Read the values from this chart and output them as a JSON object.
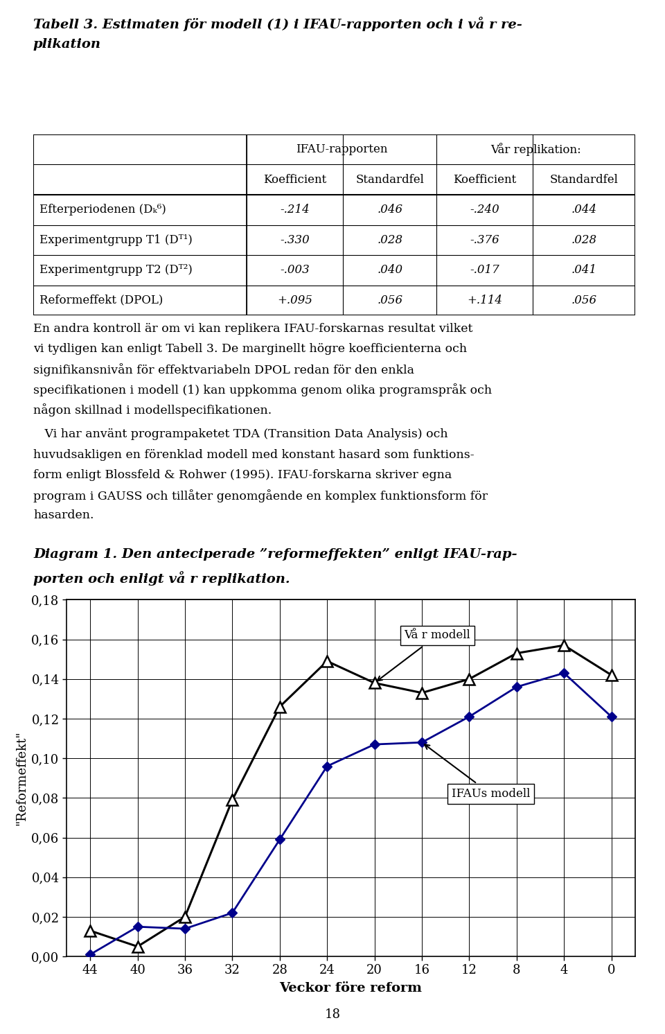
{
  "title_line1": "Tabell 3. Estimaten för modell (1) i IFAU-rapporten och i vå r re-",
  "title_line2": "plikation",
  "table_col_header1": "IFAU-rapporten",
  "table_col_header2": "Koefficient",
  "table_col_header3": "Standardfel",
  "table_col_header4": "Vår replikation:",
  "table_col_header5": "Koefficient",
  "table_col_header6": "Standardfel",
  "table_rows": [
    [
      "Efterperiodenen (Dₖ⁶)",
      "-.214",
      ".046",
      "-.240",
      ".044"
    ],
    [
      "Experimentgrupp T1 (Dᵀ¹)",
      "-.330",
      ".028",
      "-.376",
      ".028"
    ],
    [
      "Experimentgrupp T2 (Dᵀ²)",
      "-.003",
      ".040",
      "-.017",
      ".041"
    ],
    [
      "Reformeffekt (DPOL)",
      "+.095",
      ".056",
      "+.114",
      ".056"
    ]
  ],
  "para1": "En andra kontroll är om vi kan replikera IFAU-forskarnas resultat vilket vi tydligen kan enligt Tabell 3. De marginellt högre koefficienterna och signifikansnivån för effektvariabeln DPOL redan för den enkla specifikationen i modell (1) kan uppkomma genom olika programspråk och någon skillnad i modellspecifikationen.",
  "para2_line1": "   Vi har använt programpaketet TDA (Transition Data Analysis) och",
  "para2_line2": "huvudsakligen en förenklad modell med konstant hasard som funktions-",
  "para2_line3": "form enligt Blossfeld & Rohwer (1995). IFAU-forskarna skriver egna",
  "para2_line4": "program i GAUSS och tillåter genomgående en komplex funktionsform för",
  "para2_line5": "hasarden.",
  "diagram_title_line1": "Diagram 1. Den anteciperade ”reformeffekten” enligt IFAU-rap-",
  "diagram_title_line2": "porten och enligt vå r replikation.",
  "x_values": [
    44,
    40,
    36,
    32,
    28,
    24,
    20,
    16,
    12,
    8,
    4,
    0
  ],
  "var_modell_y": [
    0.013,
    0.005,
    0.02,
    0.079,
    0.126,
    0.149,
    0.138,
    0.133,
    0.14,
    0.153,
    0.157,
    0.142
  ],
  "ifau_modell_y": [
    0.001,
    0.015,
    0.014,
    0.022,
    0.059,
    0.096,
    0.107,
    0.108,
    0.121,
    0.136,
    0.143,
    0.121
  ],
  "ytick_labels": [
    "0,00",
    "0,02",
    "0,04",
    "0,06",
    "0,08",
    "0,10",
    "0,12",
    "0,14",
    "0,16",
    "0,18"
  ],
  "ytick_values": [
    0.0,
    0.02,
    0.04,
    0.06,
    0.08,
    0.1,
    0.12,
    0.14,
    0.16,
    0.18
  ],
  "ylabel": "\"Reformeffekt\"",
  "xlabel": "Veckor före reform",
  "var_modell_label": "Vå r modell",
  "ifau_modell_label": "IFAUs modell",
  "page_number": "18",
  "var_color": "#000000",
  "ifau_color": "#00008B",
  "annotation_arrow_color": "#000000"
}
